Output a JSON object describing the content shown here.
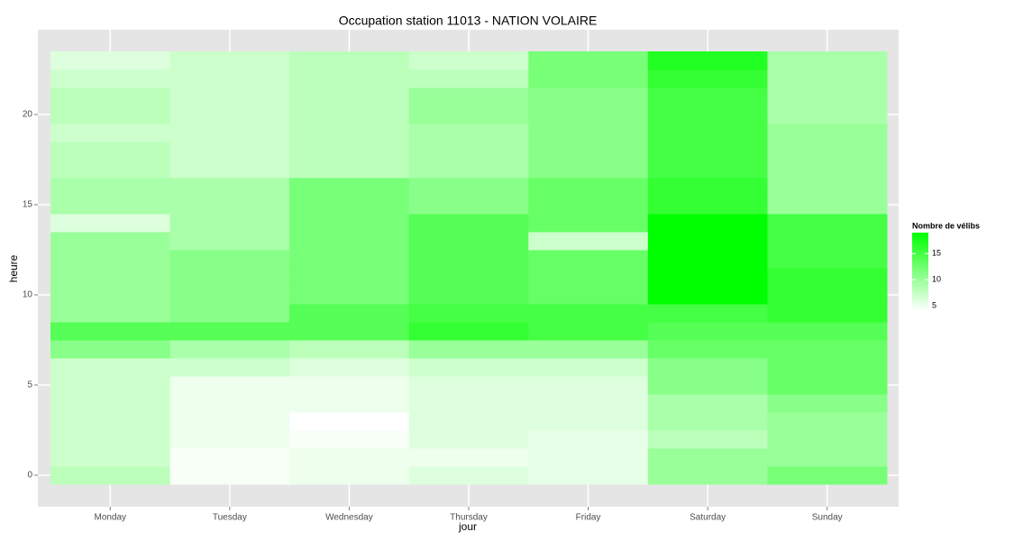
{
  "chart_data": {
    "type": "heatmap",
    "title": "Occupation station 11013 - NATION VOLAIRE",
    "x_label": "jour",
    "y_label": "heure",
    "categories": [
      "Monday",
      "Tuesday",
      "Wednesday",
      "Thursday",
      "Friday",
      "Saturday",
      "Sunday"
    ],
    "y": [
      0,
      1,
      2,
      3,
      4,
      5,
      6,
      7,
      8,
      9,
      10,
      11,
      12,
      13,
      14,
      15,
      16,
      17,
      18,
      19,
      20,
      21,
      22,
      23
    ],
    "values": [
      [
        8,
        7,
        7,
        7,
        7,
        7,
        7,
        11,
        14,
        10,
        10,
        10,
        10,
        10,
        6,
        9,
        9,
        8,
        8,
        7,
        8,
        8,
        7,
        6
      ],
      [
        4.5,
        4.5,
        5,
        5,
        5,
        5,
        7,
        9,
        14,
        11,
        11,
        11,
        11,
        9,
        9,
        9,
        9,
        7,
        7,
        7,
        7,
        7,
        7,
        7
      ],
      [
        5,
        5,
        4.5,
        4,
        5,
        5,
        6,
        8,
        14,
        14,
        12,
        12,
        12,
        12,
        12,
        12,
        12,
        8,
        8,
        8,
        8,
        8,
        8,
        8
      ],
      [
        6,
        5,
        6,
        6,
        6,
        6,
        7,
        10,
        16,
        15,
        14,
        14,
        14,
        14,
        14,
        11,
        11,
        9,
        9,
        9,
        10,
        10,
        8,
        7
      ],
      [
        5.5,
        5.5,
        5.5,
        6,
        6,
        6,
        7,
        10,
        15,
        15,
        13,
        13,
        13,
        7,
        13,
        13,
        13,
        11,
        11,
        11,
        11,
        11,
        12,
        12
      ],
      [
        10,
        10,
        8,
        9,
        9,
        11,
        11,
        13,
        14,
        15,
        19,
        19,
        19,
        19,
        19,
        16,
        16,
        15,
        15,
        15,
        15,
        15,
        16,
        17
      ],
      [
        12,
        10,
        10,
        10,
        11,
        13,
        13,
        13,
        14,
        16,
        16,
        16,
        15,
        15,
        15,
        10,
        10,
        10,
        10,
        10,
        9,
        9,
        9,
        9
      ]
    ],
    "ylim": [
      -1.75,
      24.7
    ],
    "yticks": [
      0,
      5,
      10,
      15,
      20
    ],
    "legend_title": "Nombre de vélibs",
    "colorlim": [
      4,
      19
    ],
    "colorticks": [
      5,
      10,
      15
    ],
    "low_color": "#ffffff",
    "high_color": "#00ff00",
    "grid": true
  }
}
